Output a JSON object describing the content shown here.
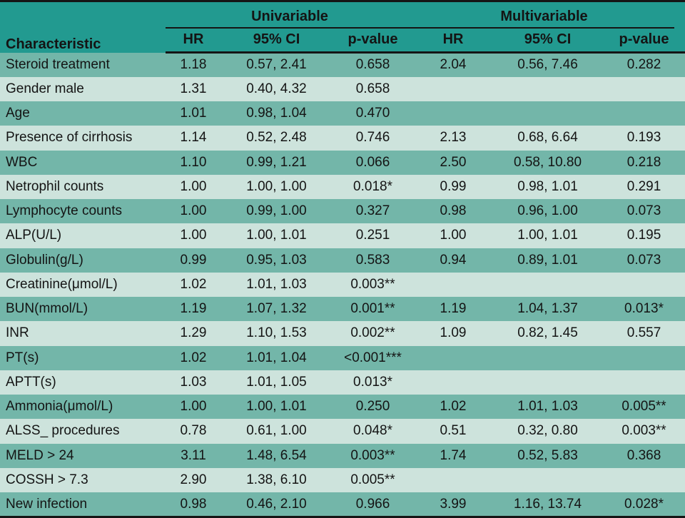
{
  "colors": {
    "header_bg": "#229a90",
    "row_medium": "#73b6a9",
    "row_light": "#cde3dc",
    "line": "#151515",
    "text": "#141414"
  },
  "table": {
    "characteristic_header": "Characteristic",
    "group_headers": {
      "univariable": "Univariable",
      "multivariable": "Multivariable"
    },
    "sub_headers": {
      "hr": "HR",
      "ci": "95% CI",
      "p": "p-value"
    },
    "rows": [
      {
        "name": "Steroid treatment",
        "u_hr": "1.18",
        "u_ci": "0.57, 2.41",
        "u_p": "0.658",
        "m_hr": "2.04",
        "m_ci": "0.56, 7.46",
        "m_p": "0.282"
      },
      {
        "name": "Gender male",
        "u_hr": "1.31",
        "u_ci": "0.40, 4.32",
        "u_p": "0.658",
        "m_hr": "",
        "m_ci": "",
        "m_p": ""
      },
      {
        "name": "Age",
        "u_hr": "1.01",
        "u_ci": "0.98, 1.04",
        "u_p": "0.470",
        "m_hr": "",
        "m_ci": "",
        "m_p": ""
      },
      {
        "name": "Presence of cirrhosis",
        "u_hr": "1.14",
        "u_ci": "0.52, 2.48",
        "u_p": "0.746",
        "m_hr": "2.13",
        "m_ci": "0.68, 6.64",
        "m_p": "0.193"
      },
      {
        "name": "WBC",
        "u_hr": "1.10",
        "u_ci": "0.99, 1.21",
        "u_p": "0.066",
        "m_hr": "2.50",
        "m_ci": "0.58, 10.80",
        "m_p": "0.218"
      },
      {
        "name": "Netrophil counts",
        "u_hr": "1.00",
        "u_ci": "1.00, 1.00",
        "u_p": "0.018*",
        "m_hr": "0.99",
        "m_ci": "0.98, 1.01",
        "m_p": "0.291"
      },
      {
        "name": "Lymphocyte counts",
        "u_hr": "1.00",
        "u_ci": "0.99, 1.00",
        "u_p": "0.327",
        "m_hr": "0.98",
        "m_ci": "0.96, 1.00",
        "m_p": "0.073"
      },
      {
        "name": "ALP(U/L)",
        "u_hr": "1.00",
        "u_ci": "1.00, 1.01",
        "u_p": "0.251",
        "m_hr": "1.00",
        "m_ci": "1.00, 1.01",
        "m_p": "0.195"
      },
      {
        "name": "Globulin(g/L)",
        "u_hr": "0.99",
        "u_ci": "0.95, 1.03",
        "u_p": "0.583",
        "m_hr": "0.94",
        "m_ci": "0.89, 1.01",
        "m_p": "0.073"
      },
      {
        "name": "Creatinine(μmol/L)",
        "u_hr": "1.02",
        "u_ci": "1.01, 1.03",
        "u_p": "0.003**",
        "m_hr": "",
        "m_ci": "",
        "m_p": ""
      },
      {
        "name": "BUN(mmol/L)",
        "u_hr": "1.19",
        "u_ci": "1.07, 1.32",
        "u_p": "0.001**",
        "m_hr": "1.19",
        "m_ci": "1.04, 1.37",
        "m_p": "0.013*"
      },
      {
        "name": "INR",
        "u_hr": "1.29",
        "u_ci": "1.10, 1.53",
        "u_p": "0.002**",
        "m_hr": "1.09",
        "m_ci": "0.82, 1.45",
        "m_p": "0.557"
      },
      {
        "name": "PT(s)",
        "u_hr": "1.02",
        "u_ci": "1.01, 1.04",
        "u_p": "<0.001***",
        "m_hr": "",
        "m_ci": "",
        "m_p": ""
      },
      {
        "name": "APTT(s)",
        "u_hr": "1.03",
        "u_ci": "1.01, 1.05",
        "u_p": "0.013*",
        "m_hr": "",
        "m_ci": "",
        "m_p": ""
      },
      {
        "name": "Ammonia(μmol/L)",
        "u_hr": "1.00",
        "u_ci": "1.00, 1.01",
        "u_p": "0.250",
        "m_hr": "1.02",
        "m_ci": "1.01, 1.03",
        "m_p": "0.005**"
      },
      {
        "name": "ALSS_ procedures",
        "u_hr": "0.78",
        "u_ci": "0.61, 1.00",
        "u_p": "0.048*",
        "m_hr": "0.51",
        "m_ci": "0.32, 0.80",
        "m_p": "0.003**"
      },
      {
        "name": "MELD > 24",
        "u_hr": "3.11",
        "u_ci": "1.48, 6.54",
        "u_p": "0.003**",
        "m_hr": "1.74",
        "m_ci": "0.52, 5.83",
        "m_p": "0.368"
      },
      {
        "name": "COSSH > 7.3",
        "u_hr": "2.90",
        "u_ci": "1.38, 6.10",
        "u_p": "0.005**",
        "m_hr": "",
        "m_ci": "",
        "m_p": ""
      },
      {
        "name": "New infection",
        "u_hr": "0.98",
        "u_ci": "0.46, 2.10",
        "u_p": "0.966",
        "m_hr": "3.99",
        "m_ci": "1.16, 13.74",
        "m_p": "0.028*"
      }
    ]
  }
}
